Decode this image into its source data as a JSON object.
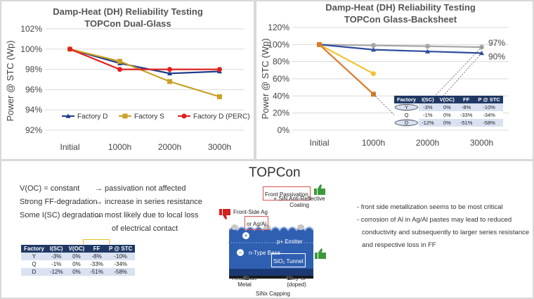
{
  "chart_data": [
    {
      "type": "line",
      "title_line1": "Damp-Heat (DH) Reliability Testing",
      "title_line2": "TOPCon Dual-Glass",
      "ylabel": "Power @ STC (Wp)",
      "categories": [
        "Initial",
        "1000h",
        "2000h",
        "3000h"
      ],
      "yticks": [
        "92%",
        "94%",
        "96%",
        "98%",
        "100%",
        "102%"
      ],
      "ylim": [
        92,
        102
      ],
      "legend_position": "bottom",
      "series": [
        {
          "name": "Factory D",
          "color": "#1f3c88",
          "marker": "triangle",
          "values": [
            100,
            98.6,
            97.6,
            97.8
          ]
        },
        {
          "name": "Factory S",
          "color": "#c9a227",
          "marker": "square",
          "values": [
            100,
            98.8,
            96.8,
            95.3
          ]
        },
        {
          "name": "Factory D (PERC)",
          "color": "#e02020",
          "marker": "circle",
          "values": [
            100,
            98.0,
            98.0,
            98.0
          ]
        }
      ]
    },
    {
      "type": "line",
      "title_line1": "Damp-Heat (DH) Reliability Testing",
      "title_line2": "TOPCon Glass-Backsheet",
      "ylabel": "Power @ STC (Wp)",
      "categories": [
        "Initial",
        "1000h",
        "2000h",
        "3000h"
      ],
      "yticks": [
        "0%",
        "20%",
        "40%",
        "60%",
        "80%",
        "100%",
        "120%"
      ],
      "ylim": [
        0,
        120
      ],
      "end_labels": [
        "97%",
        "90%"
      ],
      "series": [
        {
          "color": "#a6a6a6",
          "marker": "circle",
          "values": [
            100,
            99,
            98,
            97
          ]
        },
        {
          "color": "#2e4d9b",
          "marker": "triangle",
          "values": [
            100,
            94,
            92,
            90
          ]
        },
        {
          "color": "#f2c230",
          "marker": "circle",
          "values": [
            100,
            66,
            null,
            null
          ]
        },
        {
          "color": "#d97b2b",
          "marker": "square",
          "values": [
            100,
            42,
            null,
            null
          ]
        }
      ],
      "table": {
        "headers": [
          "Factory",
          "I(SC)",
          "V(OC)",
          "FF",
          "P @ STC"
        ],
        "rows": [
          [
            "Y",
            "-3%",
            "0%",
            "-8%",
            "-10%"
          ],
          [
            "Q",
            "-1%",
            "0%",
            "-33%",
            "-34%"
          ],
          [
            "D",
            "-12%",
            "0%",
            "-51%",
            "-58%"
          ]
        ]
      }
    }
  ],
  "bottom_left": {
    "lines": [
      {
        "left": "V(OC) = constant",
        "right": "→ passivation not affected"
      },
      {
        "left": "Strong FF-degradation",
        "right": "→ increase in series resistance"
      },
      {
        "left": "Some I(SC) degradation",
        "right": "→ most likely due to local loss"
      },
      {
        "left": "",
        "right": "of electrical contact"
      }
    ],
    "table": {
      "headers": [
        "Factory",
        "I(SC)",
        "V(OC)",
        "FF",
        "P @ STC"
      ],
      "rows": [
        [
          "Y",
          "-3%",
          "0%",
          "-8%",
          "-10%"
        ],
        [
          "Q",
          "-1%",
          "0%",
          "-33%",
          "-34%"
        ],
        [
          "D",
          "-12%",
          "0%",
          "-51%",
          "-58%"
        ]
      ]
    }
  },
  "diagram": {
    "title": "TOPCon",
    "front_passivation": "Front Passivation",
    "sin_coating": "+ SiN Anti-Reflective Coating",
    "front_side": "Front-Side Ag",
    "or_agal": "or Ag/Al",
    "emitter": "p+ Emitter",
    "base": "n-Type Base",
    "tunnel": "SiO₂ Tunnel",
    "rear_side": "Rear-Side Metal",
    "polysi": "Poly-Si (doped)",
    "sinx": "SiNx Capping",
    "minus": "−",
    "plus": "+",
    "colors": {
      "cell": "#2f5fb0",
      "thumb_up": "#3a9a3a",
      "thumb_down": "#d42020",
      "highlight": "#d9534f"
    }
  },
  "right_text": {
    "lines": [
      "- front side metallization seems to be most critical",
      "- corrosion of Al in Ag/Al pastes may lead to reduced",
      "  conductivity and subsequently to larger series resistance",
      "  and respective loss in FF"
    ]
  }
}
